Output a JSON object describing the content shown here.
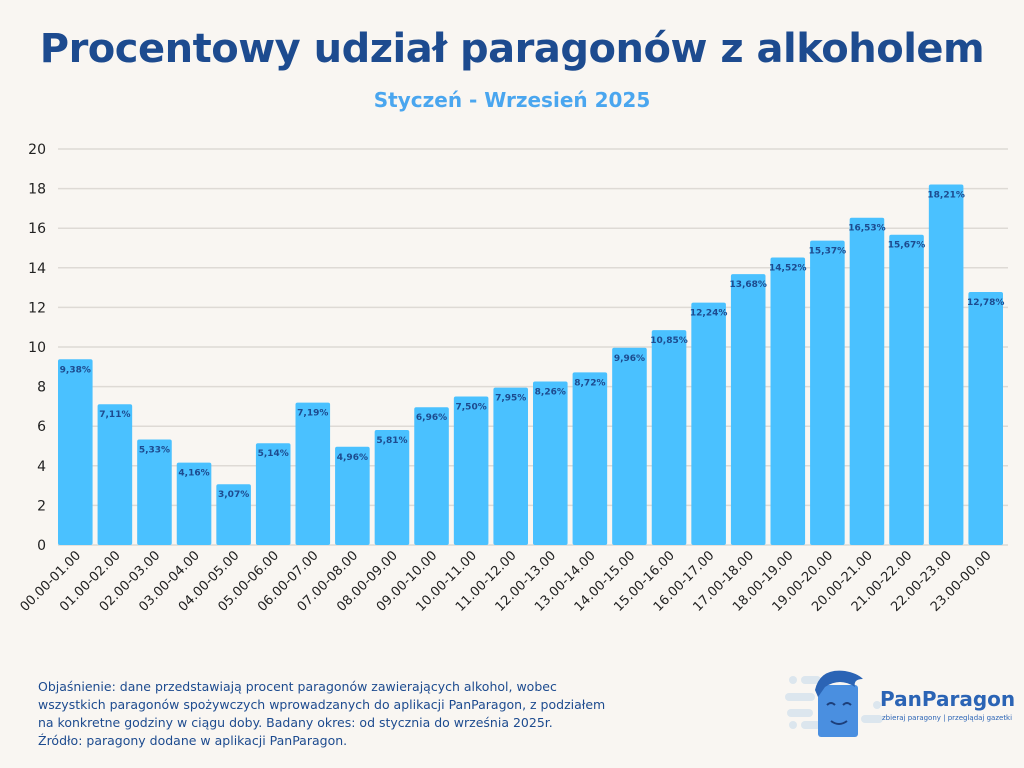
{
  "chart_data": {
    "type": "bar",
    "title": "Procentowy udział paragonów z alkoholem",
    "subtitle": "Styczeń - Wrzesień 2025",
    "xlabel": "",
    "ylabel": "",
    "ylim": [
      0,
      20
    ],
    "yticks": [
      "0",
      "2",
      "4",
      "6",
      "8",
      "10",
      "12",
      "14",
      "16",
      "18",
      "20"
    ],
    "grid": true,
    "bar_color": "#4ac1ff",
    "label_color": "#1d4b8f",
    "categories": [
      "00.00-01.00",
      "01.00-02.00",
      "02.00-03.00",
      "03.00-04.00",
      "04.00-05.00",
      "05.00-06.00",
      "06.00-07.00",
      "07.00-08.00",
      "08.00-09.00",
      "09.00-10.00",
      "10.00-11.00",
      "11.00-12.00",
      "12.00-13.00",
      "13.00-14.00",
      "14.00-15.00",
      "15.00-16.00",
      "16.00-17.00",
      "17.00-18.00",
      "18.00-19.00",
      "19.00-20.00",
      "20.00-21.00",
      "21.00-22.00",
      "22.00-23.00",
      "23.00-00.00"
    ],
    "values": [
      9.38,
      7.11,
      5.33,
      4.16,
      3.07,
      5.14,
      7.19,
      4.96,
      5.81,
      6.96,
      7.5,
      7.95,
      8.26,
      8.72,
      9.96,
      10.85,
      12.24,
      13.68,
      14.52,
      15.37,
      16.53,
      15.67,
      18.21,
      12.78
    ],
    "data_labels": [
      "9,38%",
      "7,11%",
      "5,33%",
      "4,16%",
      "3,07%",
      "5,14%",
      "7,19%",
      "4,96%",
      "5,81%",
      "6,96%",
      "7,50%",
      "7,95%",
      "8,26%",
      "8,72%",
      "9,96%",
      "10,85%",
      "12,24%",
      "13,68%",
      "14,52%",
      "15,37%",
      "16,53%",
      "15,67%",
      "18,21%",
      "12,78%"
    ]
  },
  "footer": {
    "note_lines": [
      "Objaśnienie: dane przedstawiają procent paragonów zawierających alkohol, wobec",
      "wszystkich paragonów spożywczych wprowadzanych do aplikacji PanParagon, z podziałem",
      "na konkretne godziny w ciągu doby.  Badany okres: od stycznia do września 2025r.",
      "Źródło: paragony dodane w aplikacji PanParagon."
    ],
    "brand": "PanParagon",
    "tagline": "zbieraj paragony | przeglądaj gazetki"
  }
}
